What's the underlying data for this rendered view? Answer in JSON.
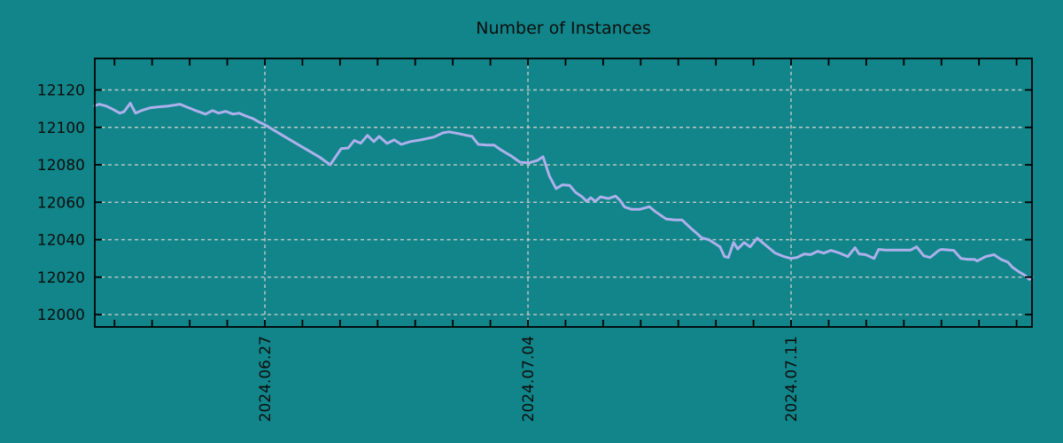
{
  "title": "Number of Instances",
  "colors": {
    "background": "#118589",
    "line": "#adb0ec",
    "grid": "#c2c9c9",
    "axis": "#000000",
    "text": "#0d0d0d"
  },
  "chart_data": {
    "type": "line",
    "title": "Number of Instances",
    "xlabel": "",
    "ylabel": "",
    "legend": false,
    "grid": true,
    "x_unit": "days relative to 2024.06.27 (x axis spans approx 2024.06.22 to 2024.07.17)",
    "x_range": [
      -4.525,
      20.41
    ],
    "y_range": [
      11993.4,
      12136.8
    ],
    "y_ticks": [
      12000,
      12020,
      12040,
      12060,
      12080,
      12100,
      12120
    ],
    "x_major_ticks": [
      {
        "day": 0,
        "label": "2024.06.27"
      },
      {
        "day": 7,
        "label": "2024.07.04"
      },
      {
        "day": 14,
        "label": "2024.07.11"
      }
    ],
    "x_minor_tick_days": [
      -4,
      -3,
      -2,
      -1,
      0,
      1,
      2,
      3,
      4,
      5,
      6,
      7,
      8,
      9,
      10,
      11,
      12,
      13,
      14,
      15,
      16,
      17,
      18,
      19,
      20
    ],
    "series": [
      {
        "name": "Number of Instances",
        "points": [
          [
            -4.53,
            12111.5
          ],
          [
            -4.41,
            12112.4
          ],
          [
            -4.22,
            12111.4
          ],
          [
            -4.03,
            12109.5
          ],
          [
            -3.86,
            12107.6
          ],
          [
            -3.75,
            12108.3
          ],
          [
            -3.58,
            12112.9
          ],
          [
            -3.44,
            12107.6
          ],
          [
            -3.28,
            12109.0
          ],
          [
            -3.04,
            12110.5
          ],
          [
            -2.8,
            12111.0
          ],
          [
            -2.57,
            12111.4
          ],
          [
            -2.26,
            12112.4
          ],
          [
            -2.03,
            12110.5
          ],
          [
            -1.79,
            12108.6
          ],
          [
            -1.58,
            12107.1
          ],
          [
            -1.39,
            12109.0
          ],
          [
            -1.23,
            12107.6
          ],
          [
            -1.04,
            12108.6
          ],
          [
            -0.85,
            12107.1
          ],
          [
            -0.68,
            12107.6
          ],
          [
            -0.52,
            12106.2
          ],
          [
            -0.33,
            12104.8
          ],
          [
            -0.16,
            12102.9
          ],
          [
            0.0,
            12101.4
          ],
          [
            0.49,
            12095.5
          ],
          [
            0.97,
            12089.8
          ],
          [
            1.44,
            12084.3
          ],
          [
            1.74,
            12080.0
          ],
          [
            2.03,
            12088.6
          ],
          [
            2.22,
            12089.0
          ],
          [
            2.38,
            12093.0
          ],
          [
            2.55,
            12091.5
          ],
          [
            2.73,
            12095.7
          ],
          [
            2.9,
            12092.4
          ],
          [
            3.04,
            12095.2
          ],
          [
            3.25,
            12091.4
          ],
          [
            3.44,
            12093.3
          ],
          [
            3.63,
            12090.9
          ],
          [
            3.87,
            12092.4
          ],
          [
            4.15,
            12093.3
          ],
          [
            4.5,
            12094.8
          ],
          [
            4.74,
            12097.1
          ],
          [
            4.9,
            12097.6
          ],
          [
            5.14,
            12096.7
          ],
          [
            5.37,
            12095.7
          ],
          [
            5.51,
            12095.2
          ],
          [
            5.68,
            12090.9
          ],
          [
            5.92,
            12090.5
          ],
          [
            6.1,
            12090.5
          ],
          [
            6.27,
            12088.1
          ],
          [
            6.55,
            12084.8
          ],
          [
            6.79,
            12081.4
          ],
          [
            7.02,
            12081.0
          ],
          [
            7.26,
            12082.4
          ],
          [
            7.4,
            12084.3
          ],
          [
            7.57,
            12074.0
          ],
          [
            7.75,
            12067.3
          ],
          [
            7.92,
            12069.3
          ],
          [
            8.11,
            12069.0
          ],
          [
            8.27,
            12065.2
          ],
          [
            8.44,
            12062.9
          ],
          [
            8.56,
            12060.5
          ],
          [
            8.67,
            12062.4
          ],
          [
            8.79,
            12060.5
          ],
          [
            8.93,
            12062.9
          ],
          [
            9.14,
            12062.0
          ],
          [
            9.33,
            12063.3
          ],
          [
            9.45,
            12061.0
          ],
          [
            9.57,
            12057.5
          ],
          [
            9.76,
            12056.2
          ],
          [
            9.97,
            12056.2
          ],
          [
            10.23,
            12057.6
          ],
          [
            10.39,
            12055.0
          ],
          [
            10.68,
            12051.0
          ],
          [
            10.91,
            12050.5
          ],
          [
            11.1,
            12050.5
          ],
          [
            11.34,
            12046.0
          ],
          [
            11.5,
            12043.3
          ],
          [
            11.62,
            12041.0
          ],
          [
            11.81,
            12040.0
          ],
          [
            12.0,
            12037.6
          ],
          [
            12.11,
            12036.2
          ],
          [
            12.23,
            12031.0
          ],
          [
            12.33,
            12030.5
          ],
          [
            12.47,
            12038.5
          ],
          [
            12.58,
            12035.0
          ],
          [
            12.75,
            12038.5
          ],
          [
            12.91,
            12036.2
          ],
          [
            13.1,
            12040.8
          ],
          [
            13.27,
            12038.0
          ],
          [
            13.39,
            12036.0
          ],
          [
            13.57,
            12032.9
          ],
          [
            13.81,
            12031.0
          ],
          [
            14.0,
            12030.0
          ],
          [
            14.16,
            12030.5
          ],
          [
            14.35,
            12032.4
          ],
          [
            14.52,
            12032.0
          ],
          [
            14.71,
            12033.8
          ],
          [
            14.87,
            12032.8
          ],
          [
            15.06,
            12034.3
          ],
          [
            15.27,
            12033.0
          ],
          [
            15.51,
            12031.0
          ],
          [
            15.7,
            12035.7
          ],
          [
            15.81,
            12032.4
          ],
          [
            15.98,
            12032.0
          ],
          [
            16.21,
            12030.0
          ],
          [
            16.33,
            12034.8
          ],
          [
            16.52,
            12034.5
          ],
          [
            16.87,
            12034.5
          ],
          [
            17.18,
            12034.5
          ],
          [
            17.34,
            12036.2
          ],
          [
            17.53,
            12031.4
          ],
          [
            17.7,
            12030.5
          ],
          [
            17.93,
            12034.3
          ],
          [
            18.0,
            12034.8
          ],
          [
            18.33,
            12034.3
          ],
          [
            18.52,
            12030.0
          ],
          [
            18.71,
            12029.5
          ],
          [
            18.88,
            12029.5
          ],
          [
            18.95,
            12028.6
          ],
          [
            19.18,
            12031.0
          ],
          [
            19.4,
            12032.0
          ],
          [
            19.58,
            12029.5
          ],
          [
            19.77,
            12028.0
          ],
          [
            19.89,
            12025.3
          ],
          [
            20.06,
            12022.9
          ],
          [
            20.22,
            12021.0
          ],
          [
            20.34,
            12018.8
          ],
          [
            20.41,
            12020.0
          ]
        ]
      }
    ]
  }
}
